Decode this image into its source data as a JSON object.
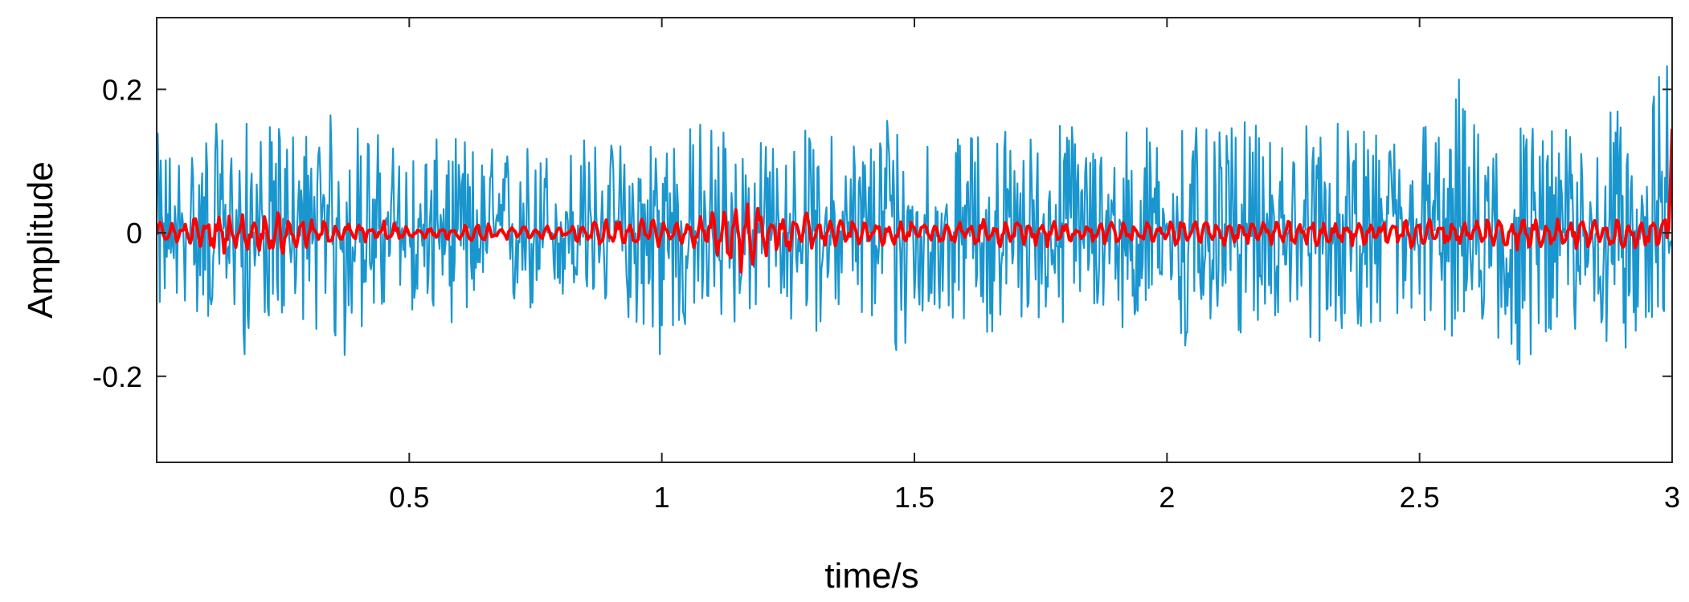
{
  "chart_data": {
    "type": "line",
    "title": "",
    "xlabel": "time/s",
    "ylabel": "Amplitude",
    "xlim": [
      0.0,
      3.0
    ],
    "ylim": [
      -0.32,
      0.3
    ],
    "grid": false,
    "legend": "none",
    "x_ticks": [
      {
        "value": 0.5,
        "label": "0.5"
      },
      {
        "value": 1.0,
        "label": "1"
      },
      {
        "value": 1.5,
        "label": "1.5"
      },
      {
        "value": 2.0,
        "label": "2"
      },
      {
        "value": 2.5,
        "label": "2.5"
      },
      {
        "value": 3.0,
        "label": "3"
      }
    ],
    "y_ticks": [
      {
        "value": 0.2,
        "label": "0.2"
      },
      {
        "value": 0.0,
        "label": "0"
      },
      {
        "value": -0.2,
        "label": "-0.2"
      }
    ],
    "series": [
      {
        "color": "#1a96cf",
        "description_points": "dense noise signal, approx. 0.005 s sampling; peaks listed below",
        "x": [
          0.0,
          0.05,
          0.1,
          0.15,
          0.18,
          0.2,
          0.25,
          0.3,
          0.37,
          0.4,
          0.45,
          0.5,
          0.55,
          0.6,
          0.65,
          0.7,
          0.75,
          0.8,
          0.85,
          0.9,
          0.95,
          1.0,
          1.05,
          1.1,
          1.15,
          1.2,
          1.25,
          1.3,
          1.35,
          1.4,
          1.47,
          1.5,
          1.55,
          1.6,
          1.65,
          1.7,
          1.75,
          1.8,
          1.85,
          1.9,
          1.95,
          2.0,
          2.03,
          2.05,
          2.1,
          2.15,
          2.2,
          2.25,
          2.3,
          2.35,
          2.4,
          2.45,
          2.5,
          2.55,
          2.58,
          2.6,
          2.65,
          2.7,
          2.75,
          2.8,
          2.85,
          2.9,
          2.95,
          3.0
        ],
        "peaks": [
          0.14,
          0.12,
          0.16,
          0.14,
          0.16,
          0.14,
          0.16,
          0.15,
          0.18,
          0.16,
          0.14,
          0.12,
          0.13,
          0.14,
          0.12,
          0.13,
          0.13,
          0.12,
          0.14,
          0.13,
          0.14,
          0.17,
          0.15,
          0.18,
          0.15,
          0.13,
          0.14,
          0.15,
          0.14,
          0.15,
          0.2,
          0.16,
          0.14,
          0.13,
          0.17,
          0.15,
          0.14,
          0.17,
          0.14,
          0.15,
          0.16,
          0.14,
          0.19,
          0.15,
          0.14,
          0.16,
          0.14,
          0.15,
          0.17,
          0.15,
          0.14,
          0.15,
          0.18,
          0.15,
          0.23,
          0.16,
          0.16,
          0.17,
          0.15,
          0.15,
          0.18,
          0.17,
          0.18,
          0.28
        ],
        "troughs": [
          -0.12,
          -0.1,
          -0.13,
          -0.11,
          -0.19,
          -0.12,
          -0.13,
          -0.12,
          -0.2,
          -0.14,
          -0.13,
          -0.11,
          -0.12,
          -0.13,
          -0.11,
          -0.12,
          -0.12,
          -0.1,
          -0.12,
          -0.11,
          -0.13,
          -0.19,
          -0.14,
          -0.15,
          -0.13,
          -0.11,
          -0.13,
          -0.14,
          -0.12,
          -0.13,
          -0.2,
          -0.14,
          -0.13,
          -0.12,
          -0.15,
          -0.13,
          -0.12,
          -0.14,
          -0.12,
          -0.13,
          -0.14,
          -0.12,
          -0.22,
          -0.14,
          -0.13,
          -0.15,
          -0.12,
          -0.13,
          -0.16,
          -0.14,
          -0.13,
          -0.14,
          -0.16,
          -0.14,
          -0.2,
          -0.15,
          -0.15,
          -0.21,
          -0.14,
          -0.15,
          -0.21,
          -0.16,
          -0.17,
          -0.17
        ]
      },
      {
        "color": "#ff0000",
        "x": [
          0.0,
          0.05,
          0.1,
          0.15,
          0.2,
          0.25,
          0.28,
          0.3,
          0.35,
          0.4,
          0.45,
          0.5,
          0.55,
          0.6,
          0.65,
          0.7,
          0.75,
          0.8,
          0.85,
          0.9,
          0.95,
          1.0,
          1.05,
          1.1,
          1.15,
          1.2,
          1.25,
          1.28,
          1.3,
          1.35,
          1.4,
          1.45,
          1.5,
          1.55,
          1.6,
          1.65,
          1.7,
          1.75,
          1.8,
          1.85,
          1.9,
          1.95,
          2.0,
          2.05,
          2.1,
          2.15,
          2.2,
          2.25,
          2.3,
          2.35,
          2.4,
          2.45,
          2.5,
          2.55,
          2.6,
          2.65,
          2.7,
          2.75,
          2.8,
          2.85,
          2.9,
          2.95,
          2.99,
          3.0
        ],
        "peaks": [
          0.015,
          0.02,
          0.025,
          0.03,
          0.025,
          0.035,
          0.035,
          0.02,
          0.015,
          0.015,
          0.02,
          0.01,
          0.01,
          0.01,
          0.015,
          0.01,
          0.01,
          0.01,
          0.015,
          0.02,
          0.02,
          0.02,
          0.02,
          0.03,
          0.045,
          0.04,
          0.035,
          0.04,
          0.025,
          0.02,
          0.015,
          0.02,
          0.015,
          0.015,
          0.02,
          0.02,
          0.02,
          0.025,
          0.015,
          0.015,
          0.02,
          0.015,
          0.015,
          0.025,
          0.02,
          0.015,
          0.02,
          0.02,
          0.02,
          0.02,
          0.02,
          0.025,
          0.02,
          0.02,
          0.02,
          0.025,
          0.025,
          0.02,
          0.025,
          0.02,
          0.025,
          0.02,
          0.02,
          0.145
        ],
        "troughs": [
          -0.015,
          -0.02,
          -0.025,
          -0.03,
          -0.025,
          -0.035,
          -0.04,
          -0.02,
          -0.015,
          -0.015,
          -0.02,
          -0.01,
          -0.01,
          -0.01,
          -0.015,
          -0.01,
          -0.01,
          -0.01,
          -0.015,
          -0.02,
          -0.02,
          -0.02,
          -0.02,
          -0.03,
          -0.06,
          -0.04,
          -0.035,
          -0.035,
          -0.025,
          -0.02,
          -0.015,
          -0.02,
          -0.015,
          -0.015,
          -0.02,
          -0.02,
          -0.02,
          -0.025,
          -0.015,
          -0.015,
          -0.02,
          -0.015,
          -0.015,
          -0.025,
          -0.02,
          -0.015,
          -0.02,
          -0.02,
          -0.02,
          -0.02,
          -0.02,
          -0.025,
          -0.02,
          -0.02,
          -0.02,
          -0.025,
          -0.025,
          -0.02,
          -0.025,
          -0.02,
          -0.025,
          -0.02,
          -0.035,
          0.14
        ]
      }
    ]
  }
}
